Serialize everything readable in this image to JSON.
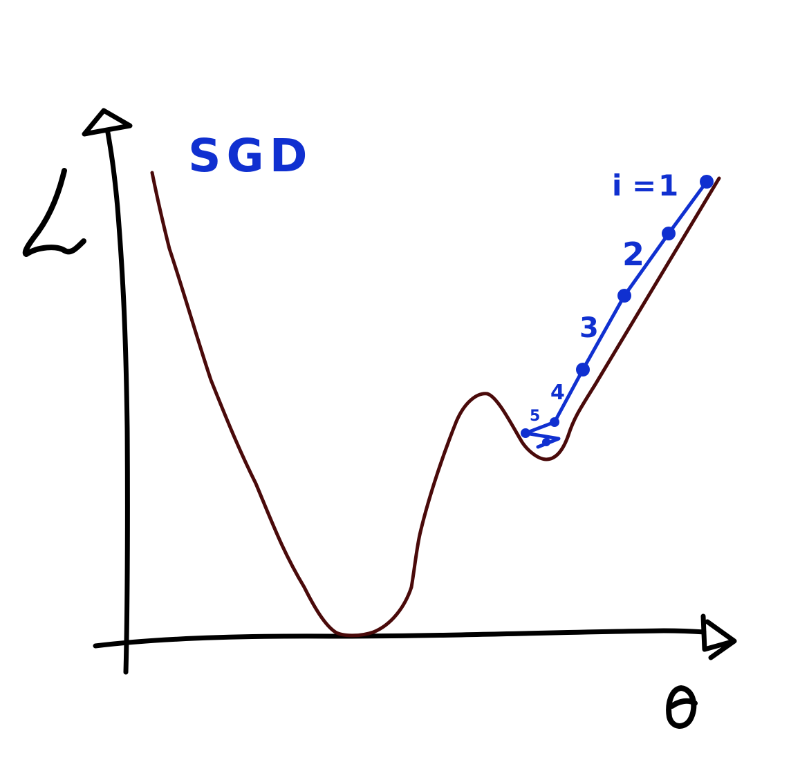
{
  "title": "SGD",
  "axes": {
    "y_label": "L",
    "x_label": "θ"
  },
  "iteration_prefix": "i = ",
  "iterations": [
    "1",
    "2",
    "3",
    "4",
    "5"
  ],
  "colors": {
    "axes": "#000000",
    "loss_curve": "#4a0a0a",
    "sgd": "#1030d0"
  }
}
